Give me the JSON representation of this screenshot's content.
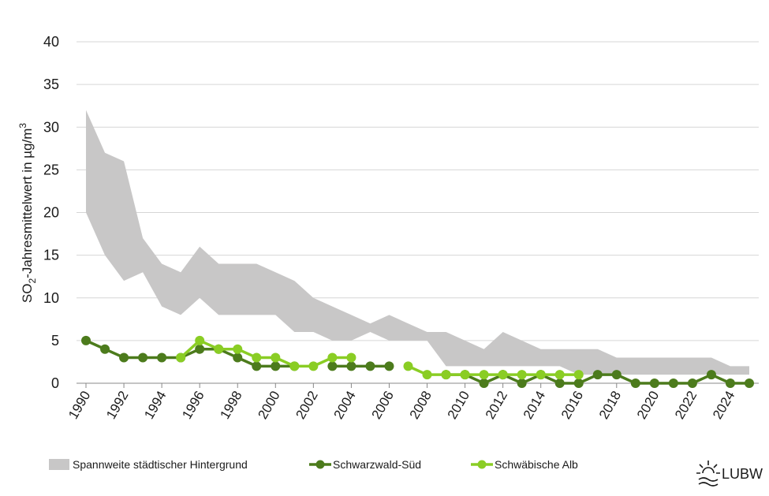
{
  "chart_data": {
    "type": "line",
    "y_label": {
      "main": "SO",
      "sub": "2",
      "rest": "-Jahresmittelwert  in  µg/m",
      "sup": "3"
    },
    "x": [
      1990,
      1991,
      1992,
      1993,
      1994,
      1995,
      1996,
      1997,
      1998,
      1999,
      2000,
      2001,
      2002,
      2003,
      2004,
      2005,
      2006,
      2007,
      2008,
      2009,
      2010,
      2011,
      2012,
      2013,
      2014,
      2015,
      2016,
      2017,
      2018,
      2019,
      2020,
      2021,
      2022,
      2023,
      2024,
      2025
    ],
    "series": [
      {
        "name": "Spannweite städtischer Hintergrund",
        "color": "#c8c7c7",
        "upper": [
          32,
          27,
          26,
          17,
          14,
          13,
          16,
          14,
          14,
          14,
          13,
          12,
          10,
          9,
          8,
          7,
          8,
          7,
          6,
          6,
          5,
          4,
          6,
          5,
          4,
          4,
          4,
          4,
          3,
          3,
          3,
          3,
          3,
          3,
          2,
          2
        ],
        "lower": [
          20,
          15,
          12,
          13,
          9,
          8,
          10,
          8,
          8,
          8,
          8,
          6,
          6,
          5,
          5,
          6,
          5,
          5,
          5,
          2,
          2,
          2,
          2,
          2,
          2,
          2,
          1,
          1,
          1,
          1,
          1,
          1,
          1,
          1,
          1,
          1
        ]
      },
      {
        "name": "Schwarzwald-Süd",
        "color": "#4c7b1c",
        "values": [
          5,
          4,
          3,
          3,
          3,
          3,
          4,
          4,
          3,
          2,
          2,
          2,
          null,
          2,
          2,
          2,
          2,
          null,
          null,
          1,
          1,
          0,
          1,
          0,
          1,
          0,
          0,
          1,
          1,
          0,
          0,
          0,
          0,
          1,
          0,
          0
        ]
      },
      {
        "name": "Schwäbische Alb",
        "color": "#8acd24",
        "values": [
          null,
          null,
          null,
          null,
          null,
          3,
          5,
          4,
          4,
          3,
          3,
          2,
          2,
          3,
          3,
          null,
          null,
          2,
          1,
          1,
          1,
          1,
          1,
          1,
          1,
          1,
          1,
          null,
          null,
          null,
          null,
          null,
          null,
          null,
          null,
          null
        ]
      }
    ],
    "xlim": [
      1989.5,
      2025.5
    ],
    "xticks": [
      1990,
      1992,
      1994,
      1996,
      1998,
      2000,
      2002,
      2004,
      2006,
      2008,
      2010,
      2012,
      2014,
      2016,
      2018,
      2020,
      2022,
      2024
    ],
    "ylim": [
      0,
      40
    ],
    "yticks": [
      0,
      5,
      10,
      15,
      20,
      25,
      30,
      35,
      40
    ],
    "grid": true,
    "logo": "LUBW"
  }
}
